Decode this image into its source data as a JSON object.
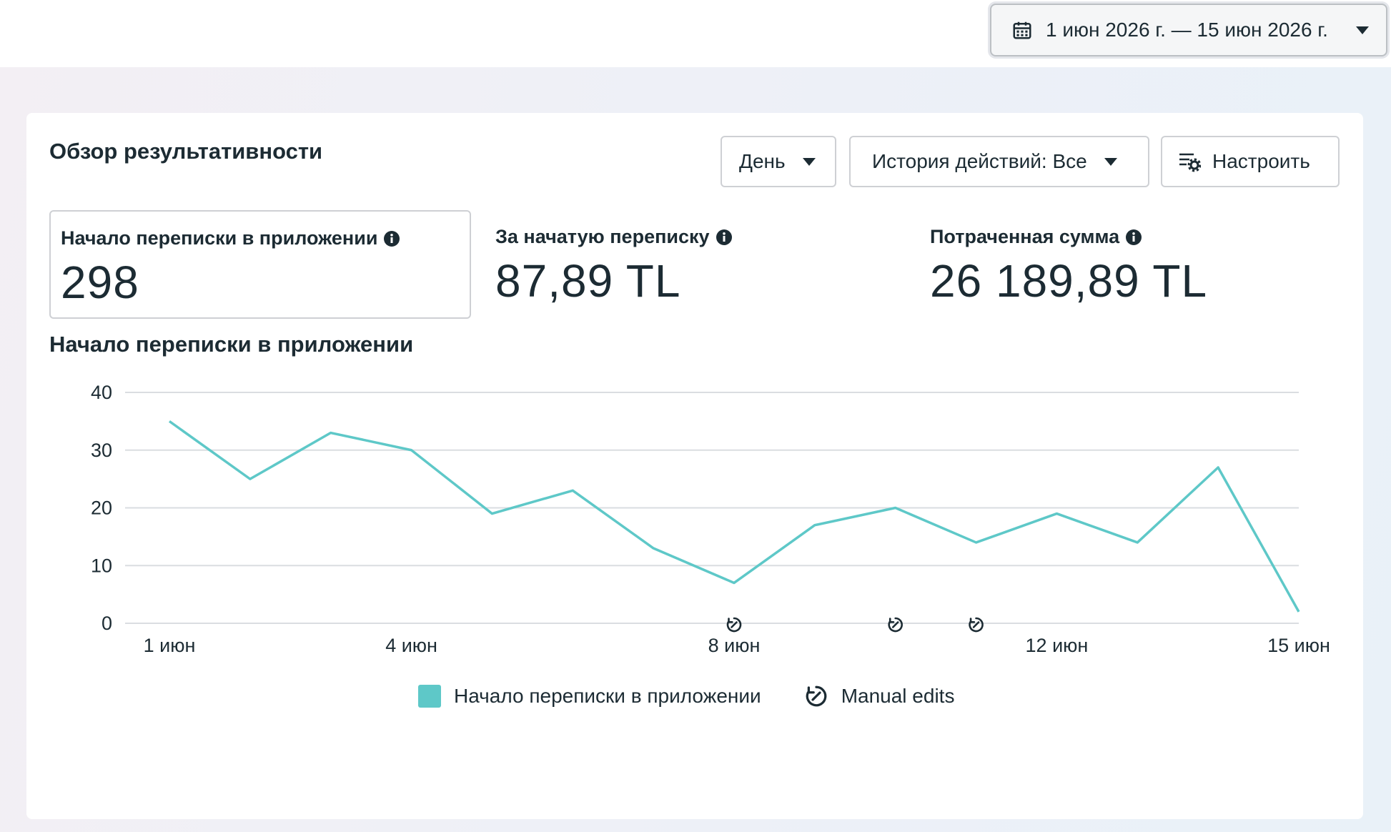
{
  "date_range": {
    "label": "1 июн 2026 г. — 15 июн 2026 г."
  },
  "overview": {
    "title": "Обзор результативности",
    "day_button": "День",
    "history_button": "История действий: Все",
    "customize_button": "Настроить"
  },
  "metrics": [
    {
      "label": "Начало переписки в приложении",
      "value": "298"
    },
    {
      "label": "За начатую переписку",
      "value": "87,89 TL"
    },
    {
      "label": "Потраченная сумма",
      "value": "26 189,89 TL"
    }
  ],
  "chart_title": "Начало переписки в приложении",
  "colors": {
    "series": "#5ec8c8",
    "grid": "#dadde1",
    "text": "#1c2b33"
  },
  "chart_data": {
    "type": "line",
    "x": [
      "1 июн",
      "2 июн",
      "3 июн",
      "4 июн",
      "5 июн",
      "6 июн",
      "7 июн",
      "8 июн",
      "9 июн",
      "10 июн",
      "11 июн",
      "12 июн",
      "13 июн",
      "14 июн",
      "15 июн"
    ],
    "x_tick_labels": [
      "1 июн",
      "4 июн",
      "8 июн",
      "12 июн",
      "15 июн"
    ],
    "x_tick_indices": [
      0,
      3,
      7,
      11,
      14
    ],
    "series": [
      {
        "name": "Начало переписки в приложении",
        "values": [
          35,
          25,
          33,
          30,
          19,
          23,
          13,
          7,
          17,
          20,
          14,
          19,
          14,
          27,
          2
        ]
      }
    ],
    "y_ticks": [
      0,
      10,
      20,
      30,
      40
    ],
    "ylim": [
      0,
      40
    ],
    "grid": true,
    "manual_edit_indices": [
      7,
      9,
      10
    ],
    "legend": {
      "placement": "bottom",
      "items": [
        "Начало переписки в приложении",
        "Manual edits"
      ]
    }
  }
}
